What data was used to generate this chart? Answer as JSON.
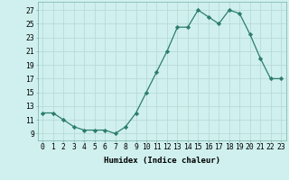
{
  "x": [
    0,
    1,
    2,
    3,
    4,
    5,
    6,
    7,
    8,
    9,
    10,
    11,
    12,
    13,
    14,
    15,
    16,
    17,
    18,
    19,
    20,
    21,
    22,
    23
  ],
  "y": [
    12,
    12,
    11,
    10,
    9.5,
    9.5,
    9.5,
    9,
    10,
    12,
    15,
    18,
    21,
    24.5,
    24.5,
    27,
    26,
    25,
    27,
    26.5,
    23.5,
    20,
    17,
    17
  ],
  "line_color": "#2d7d6e",
  "marker": "D",
  "marker_size": 2.2,
  "bg_color": "#cff0ee",
  "grid_color": "#b8dbd8",
  "xlabel": "Humidex (Indice chaleur)",
  "ylabel_ticks": [
    9,
    11,
    13,
    15,
    17,
    19,
    21,
    23,
    25,
    27
  ],
  "xlim": [
    -0.5,
    23.5
  ],
  "ylim": [
    8.0,
    28.2
  ],
  "xtick_labels": [
    "0",
    "1",
    "2",
    "3",
    "4",
    "5",
    "6",
    "7",
    "8",
    "9",
    "10",
    "11",
    "12",
    "13",
    "14",
    "15",
    "16",
    "17",
    "18",
    "19",
    "20",
    "21",
    "22",
    "23"
  ],
  "label_fontsize": 6.5,
  "tick_fontsize": 5.8
}
